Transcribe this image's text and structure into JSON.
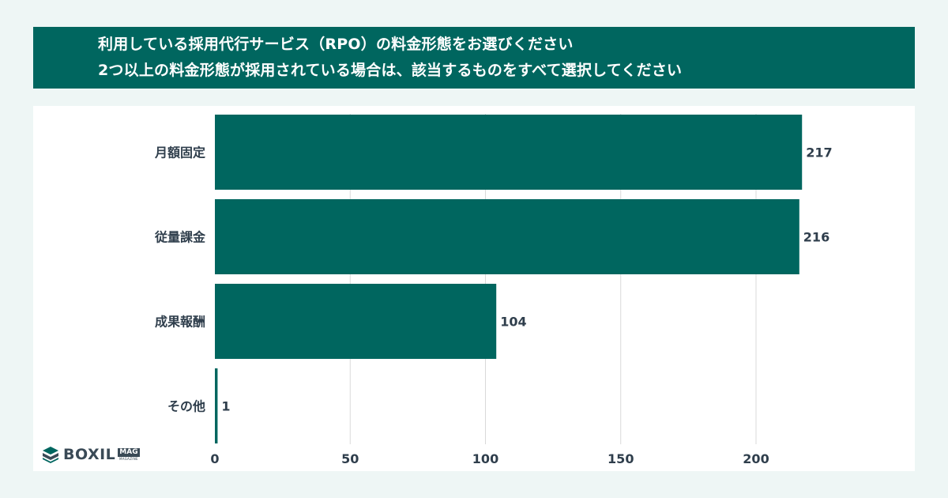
{
  "header": {
    "title_line1": "利用している採用代行サービス（RPO）の料金形態をお選びください",
    "title_line2": "2つ以上の料金形態が採用されている場合は、該当するものをすべて選択してください"
  },
  "brand": {
    "logo_text": "BOXIL",
    "logo_badge": "MAG",
    "logo_sub": "MAGAZINE"
  },
  "colors": {
    "bar": "#00665f",
    "banner": "#00665f",
    "grid": "#d9d9d9",
    "text": "#2f3e4c"
  },
  "chart_data": {
    "type": "bar",
    "orientation": "horizontal",
    "categories": [
      "月額固定",
      "従量課金",
      "成果報酬",
      "その他"
    ],
    "values": [
      217,
      216,
      104,
      1
    ],
    "xlim": [
      0,
      250
    ],
    "xticks": [
      0,
      50,
      100,
      150,
      200
    ],
    "grid": true,
    "data_labels": true
  }
}
